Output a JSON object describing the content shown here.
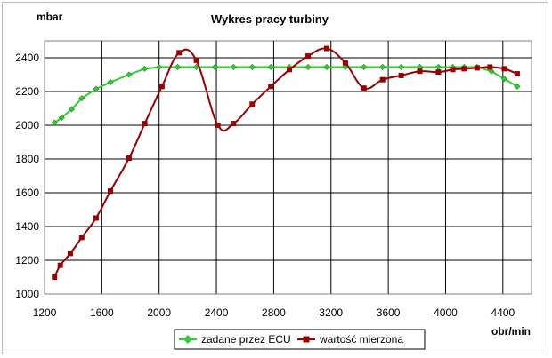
{
  "chart_data": {
    "type": "line",
    "title": "Wykres pracy turbiny",
    "ylabel": "mbar",
    "xlabel": "obr/min",
    "xlim": [
      1200,
      4600
    ],
    "ylim": [
      1000,
      2500
    ],
    "xticks": [
      1200,
      1600,
      2000,
      2400,
      2800,
      3200,
      3600,
      4000,
      4400
    ],
    "yticks": [
      1000,
      1200,
      1400,
      1600,
      1800,
      2000,
      2200,
      2400
    ],
    "grid": true,
    "legend_position": "bottom",
    "series": [
      {
        "name": "zadane przez ECU",
        "color": "#33cc33",
        "marker": "diamond",
        "smooth": false,
        "x": [
          1270,
          1320,
          1390,
          1460,
          1560,
          1660,
          1790,
          1900,
          2000,
          2130,
          2260,
          2390,
          2520,
          2650,
          2780,
          2910,
          3040,
          3170,
          3300,
          3430,
          3560,
          3690,
          3820,
          3950,
          4050,
          4130,
          4220,
          4320,
          4410,
          4500
        ],
        "y": [
          2015,
          2045,
          2095,
          2160,
          2215,
          2255,
          2300,
          2335,
          2345,
          2345,
          2345,
          2345,
          2345,
          2345,
          2345,
          2345,
          2345,
          2345,
          2345,
          2345,
          2345,
          2345,
          2345,
          2345,
          2345,
          2345,
          2345,
          2320,
          2275,
          2230
        ]
      },
      {
        "name": "wartość mierzona",
        "color": "#990000",
        "marker": "square",
        "smooth": true,
        "x": [
          1270,
          1310,
          1380,
          1460,
          1560,
          1660,
          1790,
          1900,
          2020,
          2140,
          2260,
          2410,
          2520,
          2650,
          2780,
          2910,
          3040,
          3170,
          3300,
          3430,
          3560,
          3690,
          3820,
          3950,
          4050,
          4130,
          4220,
          4310,
          4410,
          4500
        ],
        "y": [
          1100,
          1170,
          1240,
          1335,
          1450,
          1610,
          1805,
          2010,
          2230,
          2430,
          2385,
          2000,
          2010,
          2125,
          2230,
          2330,
          2410,
          2455,
          2370,
          2220,
          2270,
          2295,
          2320,
          2315,
          2330,
          2335,
          2340,
          2345,
          2335,
          2305
        ]
      }
    ]
  }
}
